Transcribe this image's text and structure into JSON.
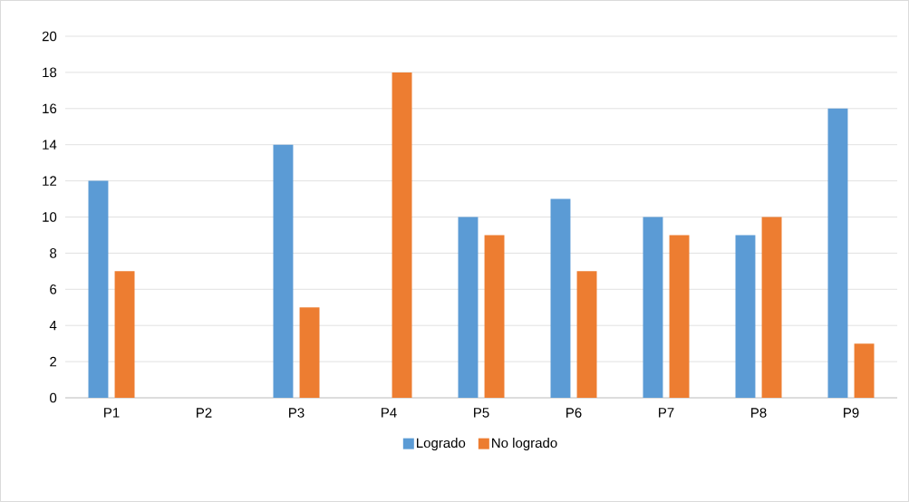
{
  "chart_data": {
    "type": "bar",
    "categories": [
      "P1",
      "P2",
      "P3",
      "P4",
      "P5",
      "P6",
      "P7",
      "P8",
      "P9"
    ],
    "series": [
      {
        "name": "Logrado",
        "color": "#5b9bd5",
        "values": [
          12,
          0,
          14,
          0,
          10,
          11,
          10,
          9,
          16
        ]
      },
      {
        "name": "No logrado",
        "color": "#ed7d31",
        "values": [
          7,
          0,
          5,
          18,
          9,
          7,
          9,
          10,
          3
        ]
      }
    ],
    "ylim": [
      0,
      20
    ],
    "yticks": [
      0,
      2,
      4,
      6,
      8,
      10,
      12,
      14,
      16,
      18,
      20
    ],
    "grid": "y",
    "legend": "bottom"
  }
}
